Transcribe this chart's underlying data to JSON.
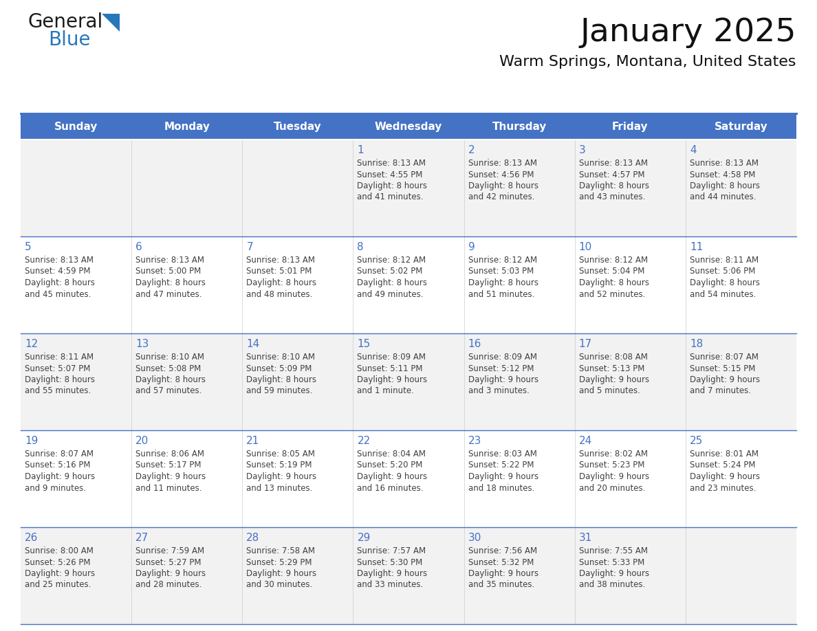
{
  "title": "January 2025",
  "subtitle": "Warm Springs, Montana, United States",
  "header_bg": "#4472C4",
  "header_text_color": "#FFFFFF",
  "cell_bg_odd": "#F2F2F2",
  "cell_bg_even": "#FFFFFF",
  "border_color": "#4472C4",
  "day_number_color": "#4472C4",
  "cell_text_color": "#404040",
  "days_of_week": [
    "Sunday",
    "Monday",
    "Tuesday",
    "Wednesday",
    "Thursday",
    "Friday",
    "Saturday"
  ],
  "calendar_data": [
    [
      {
        "day": "",
        "sunrise": "",
        "sunset": "",
        "daylight_line1": "",
        "daylight_line2": ""
      },
      {
        "day": "",
        "sunrise": "",
        "sunset": "",
        "daylight_line1": "",
        "daylight_line2": ""
      },
      {
        "day": "",
        "sunrise": "",
        "sunset": "",
        "daylight_line1": "",
        "daylight_line2": ""
      },
      {
        "day": "1",
        "sunrise": "8:13 AM",
        "sunset": "4:55 PM",
        "daylight_line1": "8 hours",
        "daylight_line2": "and 41 minutes."
      },
      {
        "day": "2",
        "sunrise": "8:13 AM",
        "sunset": "4:56 PM",
        "daylight_line1": "8 hours",
        "daylight_line2": "and 42 minutes."
      },
      {
        "day": "3",
        "sunrise": "8:13 AM",
        "sunset": "4:57 PM",
        "daylight_line1": "8 hours",
        "daylight_line2": "and 43 minutes."
      },
      {
        "day": "4",
        "sunrise": "8:13 AM",
        "sunset": "4:58 PM",
        "daylight_line1": "8 hours",
        "daylight_line2": "and 44 minutes."
      }
    ],
    [
      {
        "day": "5",
        "sunrise": "8:13 AM",
        "sunset": "4:59 PM",
        "daylight_line1": "8 hours",
        "daylight_line2": "and 45 minutes."
      },
      {
        "day": "6",
        "sunrise": "8:13 AM",
        "sunset": "5:00 PM",
        "daylight_line1": "8 hours",
        "daylight_line2": "and 47 minutes."
      },
      {
        "day": "7",
        "sunrise": "8:13 AM",
        "sunset": "5:01 PM",
        "daylight_line1": "8 hours",
        "daylight_line2": "and 48 minutes."
      },
      {
        "day": "8",
        "sunrise": "8:12 AM",
        "sunset": "5:02 PM",
        "daylight_line1": "8 hours",
        "daylight_line2": "and 49 minutes."
      },
      {
        "day": "9",
        "sunrise": "8:12 AM",
        "sunset": "5:03 PM",
        "daylight_line1": "8 hours",
        "daylight_line2": "and 51 minutes."
      },
      {
        "day": "10",
        "sunrise": "8:12 AM",
        "sunset": "5:04 PM",
        "daylight_line1": "8 hours",
        "daylight_line2": "and 52 minutes."
      },
      {
        "day": "11",
        "sunrise": "8:11 AM",
        "sunset": "5:06 PM",
        "daylight_line1": "8 hours",
        "daylight_line2": "and 54 minutes."
      }
    ],
    [
      {
        "day": "12",
        "sunrise": "8:11 AM",
        "sunset": "5:07 PM",
        "daylight_line1": "8 hours",
        "daylight_line2": "and 55 minutes."
      },
      {
        "day": "13",
        "sunrise": "8:10 AM",
        "sunset": "5:08 PM",
        "daylight_line1": "8 hours",
        "daylight_line2": "and 57 minutes."
      },
      {
        "day": "14",
        "sunrise": "8:10 AM",
        "sunset": "5:09 PM",
        "daylight_line1": "8 hours",
        "daylight_line2": "and 59 minutes."
      },
      {
        "day": "15",
        "sunrise": "8:09 AM",
        "sunset": "5:11 PM",
        "daylight_line1": "9 hours",
        "daylight_line2": "and 1 minute."
      },
      {
        "day": "16",
        "sunrise": "8:09 AM",
        "sunset": "5:12 PM",
        "daylight_line1": "9 hours",
        "daylight_line2": "and 3 minutes."
      },
      {
        "day": "17",
        "sunrise": "8:08 AM",
        "sunset": "5:13 PM",
        "daylight_line1": "9 hours",
        "daylight_line2": "and 5 minutes."
      },
      {
        "day": "18",
        "sunrise": "8:07 AM",
        "sunset": "5:15 PM",
        "daylight_line1": "9 hours",
        "daylight_line2": "and 7 minutes."
      }
    ],
    [
      {
        "day": "19",
        "sunrise": "8:07 AM",
        "sunset": "5:16 PM",
        "daylight_line1": "9 hours",
        "daylight_line2": "and 9 minutes."
      },
      {
        "day": "20",
        "sunrise": "8:06 AM",
        "sunset": "5:17 PM",
        "daylight_line1": "9 hours",
        "daylight_line2": "and 11 minutes."
      },
      {
        "day": "21",
        "sunrise": "8:05 AM",
        "sunset": "5:19 PM",
        "daylight_line1": "9 hours",
        "daylight_line2": "and 13 minutes."
      },
      {
        "day": "22",
        "sunrise": "8:04 AM",
        "sunset": "5:20 PM",
        "daylight_line1": "9 hours",
        "daylight_line2": "and 16 minutes."
      },
      {
        "day": "23",
        "sunrise": "8:03 AM",
        "sunset": "5:22 PM",
        "daylight_line1": "9 hours",
        "daylight_line2": "and 18 minutes."
      },
      {
        "day": "24",
        "sunrise": "8:02 AM",
        "sunset": "5:23 PM",
        "daylight_line1": "9 hours",
        "daylight_line2": "and 20 minutes."
      },
      {
        "day": "25",
        "sunrise": "8:01 AM",
        "sunset": "5:24 PM",
        "daylight_line1": "9 hours",
        "daylight_line2": "and 23 minutes."
      }
    ],
    [
      {
        "day": "26",
        "sunrise": "8:00 AM",
        "sunset": "5:26 PM",
        "daylight_line1": "9 hours",
        "daylight_line2": "and 25 minutes."
      },
      {
        "day": "27",
        "sunrise": "7:59 AM",
        "sunset": "5:27 PM",
        "daylight_line1": "9 hours",
        "daylight_line2": "and 28 minutes."
      },
      {
        "day": "28",
        "sunrise": "7:58 AM",
        "sunset": "5:29 PM",
        "daylight_line1": "9 hours",
        "daylight_line2": "and 30 minutes."
      },
      {
        "day": "29",
        "sunrise": "7:57 AM",
        "sunset": "5:30 PM",
        "daylight_line1": "9 hours",
        "daylight_line2": "and 33 minutes."
      },
      {
        "day": "30",
        "sunrise": "7:56 AM",
        "sunset": "5:32 PM",
        "daylight_line1": "9 hours",
        "daylight_line2": "and 35 minutes."
      },
      {
        "day": "31",
        "sunrise": "7:55 AM",
        "sunset": "5:33 PM",
        "daylight_line1": "9 hours",
        "daylight_line2": "and 38 minutes."
      },
      {
        "day": "",
        "sunrise": "",
        "sunset": "",
        "daylight_line1": "",
        "daylight_line2": ""
      }
    ]
  ],
  "logo_general_color": "#1a1a1a",
  "logo_blue_color": "#2777BB",
  "logo_triangle_color": "#2777BB"
}
